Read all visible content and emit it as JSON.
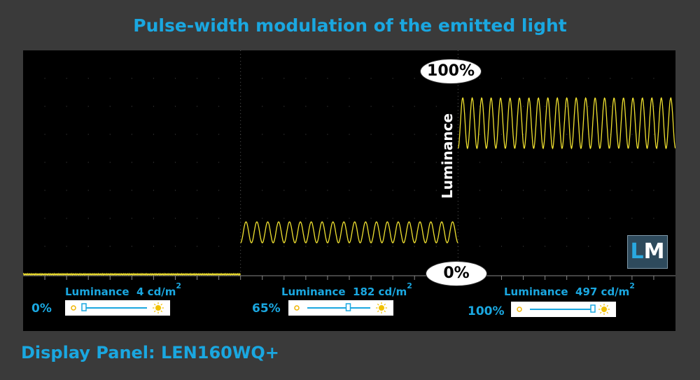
{
  "title": "Pulse-width modulation of the emitted light",
  "footer": "Display Panel: LEN160WQ+",
  "axis_label": "Luminance",
  "badges": {
    "top": "100%",
    "bottom": "0%"
  },
  "logo": {
    "l": "L",
    "m": "M"
  },
  "colors": {
    "accent": "#1aa7e0",
    "trace": "#f0e130",
    "background": "#3a3a3a"
  },
  "segments": [
    {
      "level": "0%",
      "luminance_text": "Luminance",
      "luminance_value": "4 cd/m",
      "unit_exp": "2",
      "slider_fraction": 0.0
    },
    {
      "level": "65%",
      "luminance_text": "Luminance",
      "luminance_value": "182 cd/m",
      "unit_exp": "2",
      "slider_fraction": 0.65
    },
    {
      "level": "100%",
      "luminance_text": "Luminance",
      "luminance_value": "497 cd/m",
      "unit_exp": "2",
      "slider_fraction": 1.0
    }
  ],
  "chart_data": {
    "type": "line",
    "title": "Pulse-width modulation of the emitted light",
    "ylabel": "Luminance",
    "grid": true,
    "series": [
      {
        "cycles": 0,
        "base": 0.0,
        "amp": 0.0
      },
      {
        "cycles": 20,
        "base": 0.2,
        "amp": 0.05
      },
      {
        "cycles": 23,
        "base": 0.72,
        "amp": 0.12
      }
    ]
  }
}
